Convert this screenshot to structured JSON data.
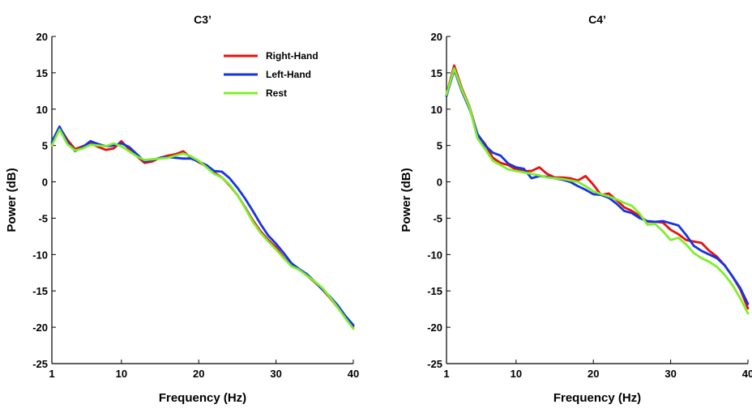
{
  "colors": {
    "Right-Hand": "#e8100c",
    "Left-Hand": "#1434e6",
    "Rest": "#7cf02a"
  },
  "chart_data": [
    {
      "type": "line",
      "title": "C3’",
      "xlabel": "Frequency (Hz)",
      "ylabel": "Power (dB)",
      "xlim": [
        1,
        40
      ],
      "ylim": [
        -25,
        20
      ],
      "xticks": [
        1,
        10,
        20,
        30,
        40
      ],
      "yticks": [
        20,
        15,
        10,
        5,
        0,
        -5,
        -10,
        -15,
        -20,
        -25
      ],
      "grid": false,
      "legend": "top-right",
      "x": [
        1,
        2,
        3,
        4,
        5,
        6,
        7,
        8,
        9,
        10,
        11,
        12,
        13,
        14,
        15,
        16,
        17,
        18,
        19,
        20,
        21,
        22,
        23,
        24,
        25,
        26,
        27,
        28,
        29,
        30,
        31,
        32,
        33,
        34,
        35,
        36,
        37,
        38,
        39,
        40
      ],
      "series": [
        {
          "name": "Right-Hand",
          "values": [
            5.2,
            7.5,
            5.8,
            4.5,
            4.9,
            5.3,
            4.8,
            4.4,
            4.6,
            5.6,
            4.5,
            3.5,
            2.6,
            2.8,
            3.3,
            3.6,
            3.8,
            4.2,
            3.3,
            2.7,
            2.1,
            1.3,
            0.6,
            -0.5,
            -1.8,
            -3.5,
            -5.3,
            -6.8,
            -8.0,
            -9.0,
            -10.4,
            -11.6,
            -12.0,
            -12.9,
            -13.8,
            -14.8,
            -16.0,
            -17.3,
            -18.5,
            -19.9
          ]
        },
        {
          "name": "Left-Hand",
          "values": [
            5.5,
            7.6,
            5.5,
            4.2,
            4.8,
            5.6,
            5.2,
            4.9,
            5.0,
            5.3,
            4.8,
            3.8,
            2.8,
            3.0,
            3.3,
            3.4,
            3.3,
            3.2,
            3.2,
            2.8,
            2.3,
            1.5,
            1.4,
            0.5,
            -0.8,
            -2.3,
            -4.0,
            -5.8,
            -7.4,
            -8.5,
            -9.8,
            -11.2,
            -12.0,
            -12.7,
            -13.7,
            -14.8,
            -15.8,
            -17.0,
            -18.5,
            -19.7
          ]
        },
        {
          "name": "Rest",
          "values": [
            5.0,
            7.2,
            5.2,
            4.3,
            4.6,
            5.1,
            5.0,
            4.9,
            5.3,
            4.9,
            4.2,
            3.5,
            3.0,
            3.1,
            3.2,
            3.3,
            3.6,
            3.9,
            3.5,
            2.9,
            2.0,
            1.1,
            0.6,
            -0.4,
            -1.8,
            -3.6,
            -5.5,
            -7.0,
            -8.2,
            -9.3,
            -10.5,
            -11.6,
            -12.1,
            -12.9,
            -13.7,
            -14.6,
            -15.9,
            -17.3,
            -18.8,
            -20.2
          ]
        }
      ],
      "legend_entries": [
        "Right-Hand",
        "Left-Hand",
        "Rest"
      ]
    },
    {
      "type": "line",
      "title": "C4’",
      "xlabel": "Frequency (Hz)",
      "ylabel": "Power (dB)",
      "xlim": [
        1,
        40
      ],
      "ylim": [
        -25,
        20
      ],
      "xticks": [
        1,
        10,
        20,
        30,
        40
      ],
      "yticks": [
        20,
        15,
        10,
        5,
        0,
        -5,
        -10,
        -15,
        -20,
        -25
      ],
      "grid": false,
      "x": [
        1,
        2,
        3,
        4,
        5,
        6,
        7,
        8,
        9,
        10,
        11,
        12,
        13,
        14,
        15,
        16,
        17,
        18,
        19,
        20,
        21,
        22,
        23,
        24,
        25,
        26,
        27,
        28,
        29,
        30,
        31,
        32,
        33,
        34,
        35,
        36,
        37,
        38,
        39,
        40
      ],
      "series": [
        {
          "name": "Right-Hand",
          "values": [
            12.0,
            16.0,
            12.8,
            10.3,
            6.5,
            5.2,
            3.3,
            2.6,
            2.3,
            1.7,
            1.5,
            1.5,
            2.0,
            1.1,
            0.6,
            0.6,
            0.5,
            0.2,
            0.8,
            -0.4,
            -1.8,
            -1.6,
            -2.5,
            -3.5,
            -4.0,
            -4.7,
            -5.5,
            -5.5,
            -5.6,
            -6.6,
            -7.2,
            -8.0,
            -8.2,
            -8.4,
            -9.5,
            -10.3,
            -11.5,
            -13.0,
            -14.8,
            -17.4
          ]
        },
        {
          "name": "Left-Hand",
          "values": [
            11.8,
            15.4,
            12.4,
            10.0,
            6.6,
            5.0,
            4.0,
            3.6,
            2.5,
            2.0,
            1.8,
            0.5,
            0.8,
            0.7,
            0.5,
            0.3,
            0.0,
            -0.6,
            -1.1,
            -1.7,
            -1.8,
            -2.2,
            -3.0,
            -4.0,
            -4.3,
            -5.0,
            -5.4,
            -5.5,
            -5.4,
            -5.7,
            -6.0,
            -7.3,
            -8.8,
            -9.5,
            -10.0,
            -10.5,
            -11.5,
            -13.0,
            -14.6,
            -16.8
          ]
        },
        {
          "name": "Rest",
          "values": [
            12.0,
            15.6,
            12.6,
            10.2,
            6.0,
            4.5,
            2.9,
            2.3,
            1.7,
            1.5,
            1.3,
            1.1,
            0.9,
            0.6,
            0.5,
            0.4,
            0.2,
            0.0,
            -0.6,
            -1.3,
            -1.7,
            -2.0,
            -2.4,
            -2.9,
            -3.3,
            -4.4,
            -5.9,
            -5.8,
            -6.8,
            -8.0,
            -7.7,
            -8.6,
            -9.8,
            -10.5,
            -11.0,
            -11.7,
            -12.8,
            -14.2,
            -16.0,
            -18.1
          ]
        }
      ]
    }
  ]
}
